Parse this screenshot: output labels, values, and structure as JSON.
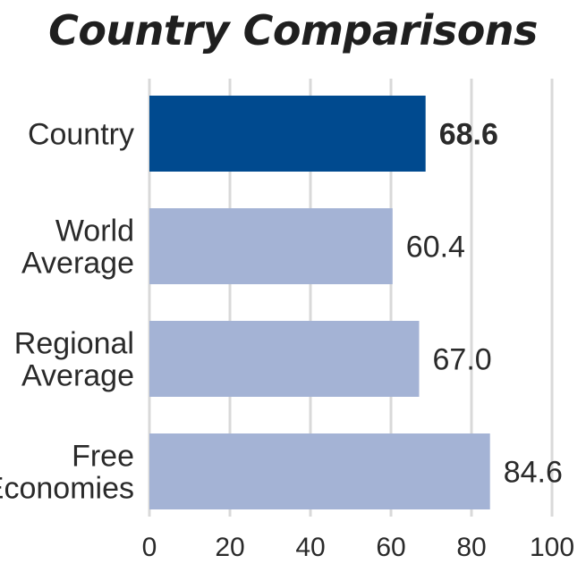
{
  "chart_data": {
    "type": "bar",
    "orientation": "horizontal",
    "title": "Country Comparisons",
    "categories": [
      [
        "Country"
      ],
      [
        "World",
        "Average"
      ],
      [
        "Regional",
        "Average"
      ],
      [
        "Free",
        "Economies"
      ]
    ],
    "values": [
      68.6,
      60.4,
      67.0,
      84.6
    ],
    "value_labels": [
      "68.6",
      "60.4",
      "67.0",
      "84.6"
    ],
    "highlight_index": 0,
    "xlim": [
      0,
      100
    ],
    "xticks": [
      0,
      20,
      40,
      60,
      80,
      100
    ],
    "xlabel": "",
    "ylabel": "",
    "grid": true,
    "colors": {
      "highlight": "#004a8f",
      "bar": "#a4b3d5",
      "grid": "#d9d9d9",
      "text": "#2a2a2a"
    }
  }
}
